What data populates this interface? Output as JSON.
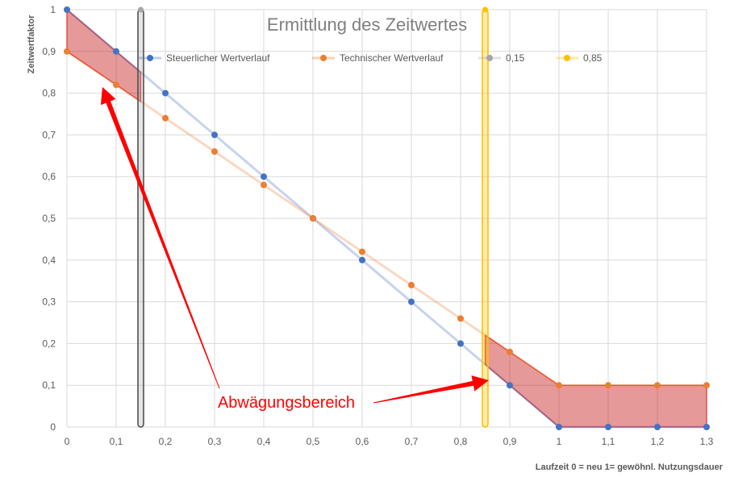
{
  "chart_data": {
    "type": "line",
    "title": "Ermittlung des Zeitwertes",
    "xlabel": "Laufzeit 0 = neu 1= gewöhnl. Nutzungsdauer",
    "ylabel": "Zeitwertfaktor",
    "xlim": [
      0,
      1.3
    ],
    "ylim": [
      0,
      1
    ],
    "x_ticks": [
      "0",
      "0,1",
      "0,2",
      "0,3",
      "0,4",
      "0,5",
      "0,6",
      "0,7",
      "0,8",
      "0,9",
      "1",
      "1,1",
      "1,2",
      "1,3"
    ],
    "y_ticks": [
      "0",
      "0,1",
      "0,2",
      "0,3",
      "0,4",
      "0,5",
      "0,6",
      "0,7",
      "0,8",
      "0,9",
      "1"
    ],
    "grid": true,
    "legend_position": "top",
    "x": [
      0,
      0.1,
      0.2,
      0.3,
      0.4,
      0.5,
      0.6,
      0.7,
      0.8,
      0.9,
      1,
      1.1,
      1.2,
      1.3
    ],
    "series": [
      {
        "name": "Steuerlicher Wertverlauf",
        "color": "#4472c4",
        "values": [
          1,
          0.9,
          0.8,
          0.7,
          0.6,
          0.5,
          0.4,
          0.3,
          0.2,
          0.1,
          0,
          0,
          0,
          0
        ]
      },
      {
        "name": "Technischer Wertverlauf",
        "color": "#ed7d31",
        "values": [
          0.9,
          0.82,
          0.74,
          0.66,
          0.58,
          0.5,
          0.42,
          0.34,
          0.26,
          0.18,
          0.1,
          0.1,
          0.1,
          0.1
        ]
      }
    ],
    "vertical_markers": [
      {
        "name": "0,15",
        "x": 0.15,
        "color": "#a5a5a5",
        "y_range": [
          0,
          1
        ]
      },
      {
        "name": "0,85",
        "x": 0.85,
        "color": "#ffc000",
        "y_range": [
          0,
          1
        ]
      }
    ],
    "shaded_regions": [
      {
        "x_range": [
          0,
          0.15
        ],
        "color": "#c00000"
      },
      {
        "x_range": [
          0.85,
          1.3
        ],
        "color": "#c00000"
      }
    ],
    "annotation": {
      "text": "Abwägungsbereich",
      "color": "#ff0000"
    }
  }
}
